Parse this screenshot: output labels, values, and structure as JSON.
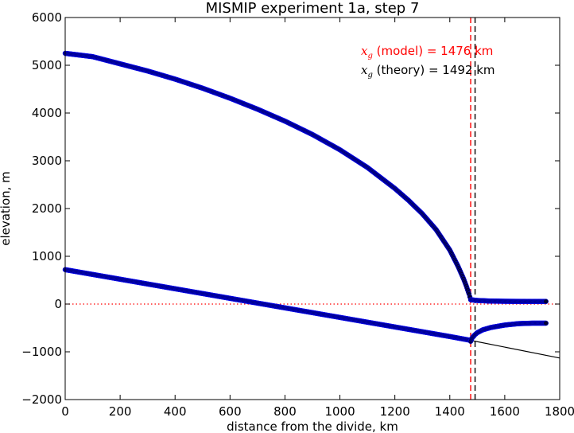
{
  "chart_data": {
    "type": "scatter",
    "title": "MISMIP experiment 1a, step 7",
    "xlabel": "distance from the divide, km",
    "ylabel": "elevation, m",
    "xlim": [
      0,
      1800
    ],
    "ylim": [
      -2000,
      6000
    ],
    "xticks": [
      "0",
      "200",
      "400",
      "600",
      "800",
      "1000",
      "1200",
      "1400",
      "1600",
      "1800"
    ],
    "yticks": [
      "−2000",
      "−1000",
      "0",
      "1000",
      "2000",
      "3000",
      "4000",
      "5000",
      "6000"
    ],
    "grid": false,
    "series": [
      {
        "role": "surface",
        "color": "#000033",
        "edge_color": "#0000ff",
        "x": [
          0,
          100,
          200,
          300,
          400,
          500,
          600,
          700,
          800,
          900,
          1000,
          1100,
          1200,
          1250,
          1300,
          1350,
          1400,
          1430,
          1450,
          1460,
          1470,
          1476,
          1500,
          1550,
          1600,
          1650,
          1700,
          1750
        ],
        "y": [
          5250,
          5180,
          5030,
          4880,
          4710,
          4520,
          4310,
          4080,
          3830,
          3550,
          3230,
          2860,
          2420,
          2170,
          1890,
          1560,
          1130,
          790,
          530,
          380,
          210,
          90,
          75,
          62,
          58,
          56,
          55,
          55
        ]
      },
      {
        "role": "bed",
        "color": "#000033",
        "edge_color": "#0000ff",
        "x": [
          0,
          200,
          400,
          600,
          800,
          1000,
          1200,
          1400,
          1476
        ],
        "y": [
          720,
          520,
          320,
          120,
          -80,
          -280,
          -480,
          -680,
          -760
        ]
      },
      {
        "role": "ice-shelf base",
        "color": "#000033",
        "edge_color": "#0000ff",
        "x": [
          1476,
          1480,
          1490,
          1500,
          1520,
          1550,
          1600,
          1650,
          1700,
          1750
        ],
        "y": [
          -780,
          -720,
          -650,
          -600,
          -540,
          -490,
          -440,
          -410,
          -400,
          -400
        ]
      }
    ],
    "bed_extension": {
      "x": [
        1476,
        1800
      ],
      "y": [
        -760,
        -1130
      ],
      "color": "#000000"
    },
    "sea_level": {
      "y": 0,
      "color": "#ff0000",
      "style": "dotted"
    },
    "grounding_lines": [
      {
        "x": 1476,
        "color": "#ff0000",
        "style": "dashed"
      },
      {
        "x": 1492,
        "color": "#000000",
        "style": "dashed"
      }
    ],
    "annotations": [
      {
        "symbol": "x",
        "subscript": "g",
        "text": " (model) = 1476 km",
        "color": "#ff0000"
      },
      {
        "symbol": "x",
        "subscript": "g",
        "text": " (theory) = 1492 km",
        "color": "#000000"
      }
    ]
  }
}
